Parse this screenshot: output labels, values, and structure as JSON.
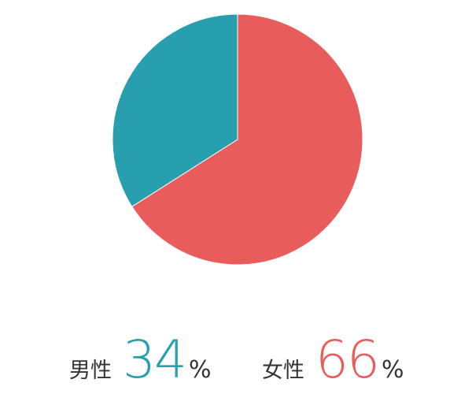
{
  "chart_data": {
    "type": "pie",
    "start": "top",
    "direction": "clockwise",
    "slices": [
      {
        "name": "女性",
        "value": 66,
        "color": "#e95c5c"
      },
      {
        "name": "男性",
        "value": 34,
        "color": "#279fae"
      }
    ],
    "legend": [
      {
        "label": "男性",
        "value": "34",
        "unit": "%",
        "color": "#279fae"
      },
      {
        "label": "女性",
        "value": "66",
        "unit": "%",
        "color": "#e95c5c"
      }
    ]
  }
}
